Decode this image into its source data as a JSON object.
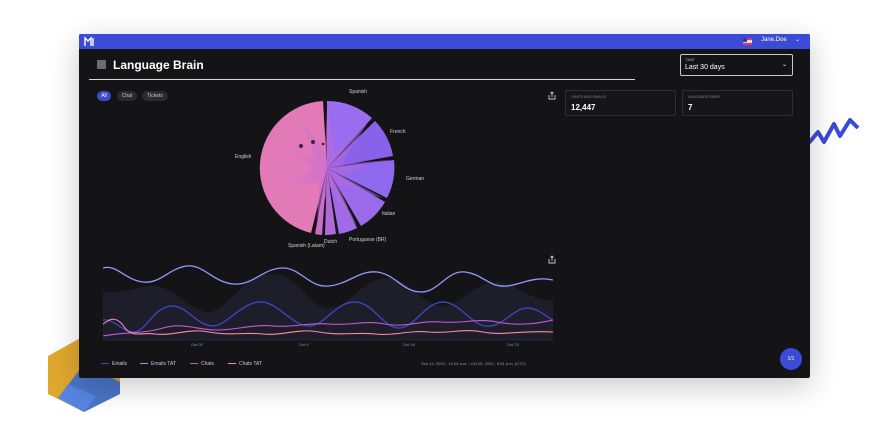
{
  "app": {
    "user_name": "Jane.Doe",
    "accent": "#3a4bd6"
  },
  "page": {
    "title": "Language Brain"
  },
  "time_filter": {
    "label": "TIME",
    "value": "Last 30 days"
  },
  "channel_filters": [
    {
      "label": "All",
      "active": true
    },
    {
      "label": "Chat",
      "active": false
    },
    {
      "label": "Tickets",
      "active": false
    }
  ],
  "stats": [
    {
      "label": "CHATS AND EMAILS",
      "value": "12,447"
    },
    {
      "label": "LANGUAGE PAIRS",
      "value": "7"
    }
  ],
  "languages": [
    "Spanish",
    "French",
    "German",
    "Italian",
    "Portuguese (BR)",
    "Dutch",
    "Spanish (Latam)",
    "English"
  ],
  "timeline": {
    "x_ticks": [
      "Oct 02",
      "Oct 9",
      "Oct 16",
      "Oct 23"
    ],
    "legend": [
      {
        "label": "Emails",
        "color": "#3d4bd0"
      },
      {
        "label": "Emails TAT",
        "color": "#8f9bff"
      },
      {
        "label": "Chats",
        "color": "#c45ad6"
      },
      {
        "label": "Chats TAT",
        "color": "#ff8aa8"
      }
    ],
    "range_text": "Sep 24, 2020 - 12:00 a.m. / Oct 25, 2020 - 6:51 p.m. (UTC)"
  },
  "fab": {
    "label": "1/1"
  }
}
